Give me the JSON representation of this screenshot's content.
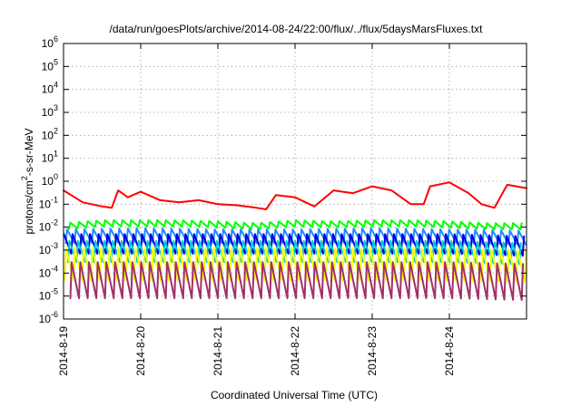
{
  "chart_data": {
    "type": "line",
    "title": "/data/run/goesPlots/archive/2014-08-24/22:00/flux/../flux/5daysMarsFluxes.txt",
    "xlabel": "Coordinated Universal Time (UTC)",
    "ylabel": {
      "prefix": "protons/cm",
      "sup": "2",
      "suffix": "-s-sr-MeV"
    },
    "y_scale": "log",
    "ylim": [
      1e-06,
      1000000.0
    ],
    "y_ticks": [
      {
        "base": "10",
        "exp": "-6",
        "value": 1e-06
      },
      {
        "base": "10",
        "exp": "-5",
        "value": 1e-05
      },
      {
        "base": "10",
        "exp": "-4",
        "value": 0.0001
      },
      {
        "base": "10",
        "exp": "-3",
        "value": 0.001
      },
      {
        "base": "10",
        "exp": "-2",
        "value": 0.01
      },
      {
        "base": "10",
        "exp": "-1",
        "value": 0.1
      },
      {
        "base": "10",
        "exp": "0",
        "value": 1
      },
      {
        "base": "10",
        "exp": "1",
        "value": 10
      },
      {
        "base": "10",
        "exp": "2",
        "value": 100
      },
      {
        "base": "10",
        "exp": "3",
        "value": 1000
      },
      {
        "base": "10",
        "exp": "4",
        "value": 10000
      },
      {
        "base": "10",
        "exp": "5",
        "value": 100000
      },
      {
        "base": "10",
        "exp": "6",
        "value": 1000000
      }
    ],
    "xlim": [
      "2014-08-19",
      "2014-08-25"
    ],
    "x_ticks": [
      "2014-8-19",
      "2014-8-20",
      "2014-8-21",
      "2014-8-22",
      "2014-8-23",
      "2014-8-24"
    ],
    "grid": true,
    "legend": "none",
    "series": [
      {
        "color": "#ff0000",
        "x": [
          "2014-08-19 00:00",
          "2014-08-19 06:00",
          "2014-08-19 12:00",
          "2014-08-19 15:00",
          "2014-08-19 17:00",
          "2014-08-19 20:00",
          "2014-08-20 00:00",
          "2014-08-20 06:00",
          "2014-08-20 12:00",
          "2014-08-20 18:00",
          "2014-08-21 00:00",
          "2014-08-21 06:00",
          "2014-08-21 12:00",
          "2014-08-21 15:00",
          "2014-08-21 18:00",
          "2014-08-22 00:00",
          "2014-08-22 06:00",
          "2014-08-22 12:00",
          "2014-08-22 18:00",
          "2014-08-23 00:00",
          "2014-08-23 06:00",
          "2014-08-23 12:00",
          "2014-08-23 16:00",
          "2014-08-23 18:00",
          "2014-08-24 00:00",
          "2014-08-24 06:00",
          "2014-08-24 10:00",
          "2014-08-24 14:00",
          "2014-08-24 18:00",
          "2014-08-25 00:00"
        ],
        "values": [
          0.4,
          0.12,
          0.08,
          0.07,
          0.4,
          0.2,
          0.35,
          0.15,
          0.12,
          0.15,
          0.1,
          0.09,
          0.07,
          0.06,
          0.25,
          0.2,
          0.08,
          0.4,
          0.3,
          0.6,
          0.4,
          0.1,
          0.1,
          0.6,
          0.9,
          0.3,
          0.1,
          0.07,
          0.7,
          0.5
        ]
      },
      {
        "color": "#00ff00",
        "x": [
          "2014-08-19 00:00",
          "2014-08-19 12:00",
          "2014-08-20 00:00",
          "2014-08-20 12:00",
          "2014-08-21 00:00",
          "2014-08-21 12:00",
          "2014-08-22 00:00",
          "2014-08-22 12:00",
          "2014-08-23 00:00",
          "2014-08-23 12:00",
          "2014-08-24 00:00",
          "2014-08-24 12:00",
          "2014-08-25 00:00"
        ],
        "values": [
          0.015,
          0.02,
          0.02,
          0.02,
          0.018,
          0.015,
          0.02,
          0.018,
          0.02,
          0.02,
          0.018,
          0.015,
          0.015
        ],
        "oscillation": "sawtooth, about 2.7 hour period, dips to about 0.008"
      },
      {
        "color": "#1e8cff",
        "x": [
          "2014-08-19 00:00",
          "2014-08-20 00:00",
          "2014-08-21 00:00",
          "2014-08-22 00:00",
          "2014-08-23 00:00",
          "2014-08-24 00:00",
          "2014-08-25 00:00"
        ],
        "values": [
          0.008,
          0.009,
          0.008,
          0.008,
          0.009,
          0.008,
          0.007
        ],
        "oscillation": "sawtooth, about 2.7 hour period, dips to about 0.002"
      },
      {
        "color": "#0000dd",
        "x": [
          "2014-08-19 00:00",
          "2014-08-20 00:00",
          "2014-08-21 00:00",
          "2014-08-22 00:00",
          "2014-08-23 00:00",
          "2014-08-24 00:00",
          "2014-08-25 00:00"
        ],
        "values": [
          0.005,
          0.005,
          0.005,
          0.005,
          0.005,
          0.005,
          0.004
        ],
        "oscillation": "sawtooth, about 2.7 hour period, dips to about 0.0007"
      },
      {
        "color": "#00cccc",
        "x": [
          "2014-08-19 00:00",
          "2014-08-20 00:00",
          "2014-08-21 00:00",
          "2014-08-22 00:00",
          "2014-08-23 00:00",
          "2014-08-24 00:00",
          "2014-08-25 00:00"
        ],
        "values": [
          0.0025,
          0.0025,
          0.0025,
          0.0025,
          0.0025,
          0.0025,
          0.002
        ],
        "oscillation": "sawtooth, about 2.7 hour period, dips to about 0.0003"
      },
      {
        "color": "#ffff00",
        "x": [
          "2014-08-19 00:00",
          "2014-08-20 00:00",
          "2014-08-21 00:00",
          "2014-08-22 00:00",
          "2014-08-23 00:00",
          "2014-08-24 00:00",
          "2014-08-25 00:00"
        ],
        "values": [
          0.0012,
          0.0012,
          0.0012,
          0.0012,
          0.0012,
          0.0012,
          0.001
        ],
        "oscillation": "sawtooth, about 2.7 hour period, dips to about 0.00005"
      },
      {
        "color": "#a0306a",
        "x": [
          "2014-08-19 00:00",
          "2014-08-20 00:00",
          "2014-08-21 00:00",
          "2014-08-22 00:00",
          "2014-08-23 00:00",
          "2014-08-24 00:00",
          "2014-08-25 00:00"
        ],
        "values": [
          0.0003,
          0.0003,
          0.0003,
          0.0003,
          0.0003,
          0.0003,
          0.00025
        ],
        "oscillation": "sawtooth, about 2.7 hour period, dips to about 0.000008"
      }
    ]
  }
}
